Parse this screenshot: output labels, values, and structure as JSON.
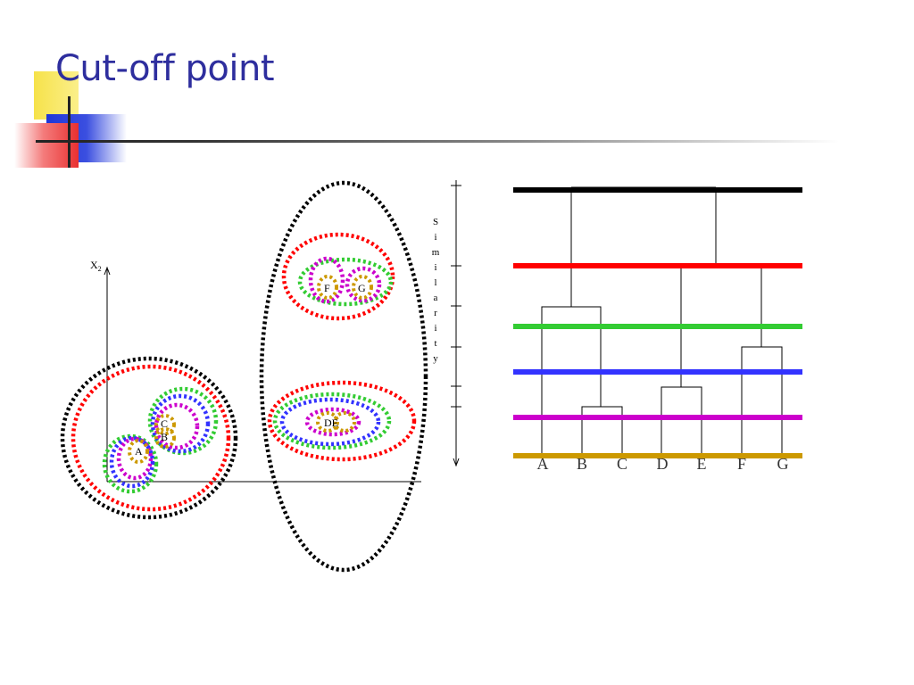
{
  "slide": {
    "title": "Cut-off point"
  },
  "scatter": {
    "axis_label": "X",
    "axis_subscript": "2",
    "points": [
      {
        "id": "A",
        "label": "A"
      },
      {
        "id": "B",
        "label": "B"
      },
      {
        "id": "C",
        "label": "C"
      },
      {
        "id": "DE",
        "label": "DE"
      },
      {
        "id": "F",
        "label": "F"
      },
      {
        "id": "G",
        "label": "G"
      }
    ]
  },
  "similarity_axis": {
    "letters": [
      "S",
      "i",
      "m",
      "i",
      "l",
      "a",
      "r",
      "i",
      "t",
      "y"
    ]
  },
  "dendrogram": {
    "leaves": [
      "A",
      "B",
      "C",
      "D",
      "E",
      "F",
      "G"
    ]
  },
  "cutoff_colors": {
    "black": "#000000",
    "red": "#ff0000",
    "green": "#33cc33",
    "blue": "#3333ff",
    "purple": "#cc00cc",
    "gold": "#cc9900"
  },
  "theme": {
    "title_color": "#2e2e9e"
  }
}
